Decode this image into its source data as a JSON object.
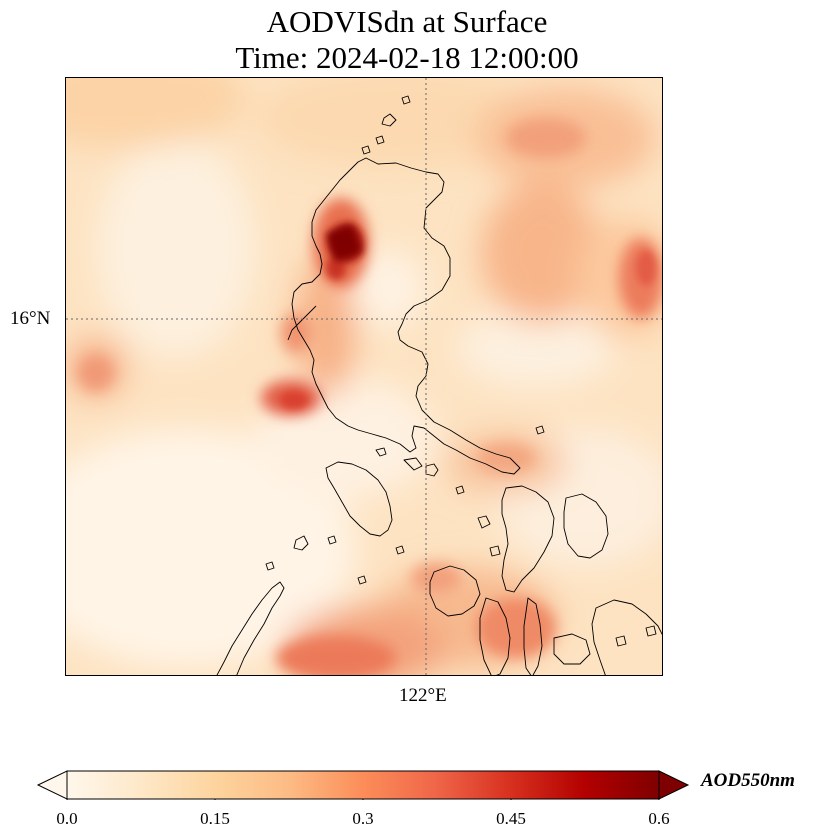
{
  "title": {
    "line1": "AODVISdn at Surface",
    "line2": "Time: 2024-02-18 12:00:00"
  },
  "axes": {
    "lat_tick": "16°N",
    "lon_tick": "122°E"
  },
  "colorbar": {
    "label": "AOD550nm",
    "ticks": [
      "0.0",
      "0.15",
      "0.3",
      "0.45",
      "0.6"
    ],
    "colormap": "OrRd",
    "colors": [
      "#fff7ec",
      "#fee8c8",
      "#fdd49e",
      "#fdbb84",
      "#fc8d59",
      "#ef6548",
      "#d7301f",
      "#b30000",
      "#7f0000"
    ],
    "range": [
      0.0,
      0.6
    ],
    "extend": "both"
  },
  "map": {
    "gridlines": "dotted",
    "coastline_color": "#000000"
  }
}
